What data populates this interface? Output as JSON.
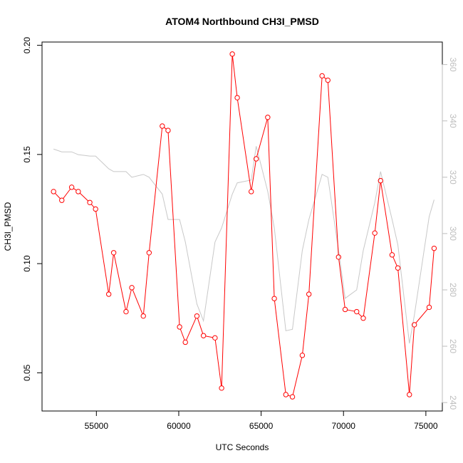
{
  "chart_data": {
    "type": "line",
    "title": "ATOM4 Northbound CH3I_PMSD",
    "xlabel": "UTC Seconds",
    "ylabel": "CH3I_PMSD",
    "xlim": [
      51700,
      76000
    ],
    "ylim": [
      0.0325,
      0.2015
    ],
    "y2lim": [
      237,
      368
    ],
    "x_ticks": [
      55000,
      60000,
      65000,
      70000,
      75000
    ],
    "y_ticks": [
      0.05,
      0.1,
      0.15,
      0.2
    ],
    "y2_ticks": [
      240,
      260,
      280,
      300,
      320,
      340,
      360
    ],
    "x_tick_labels": [
      "55000",
      "60000",
      "65000",
      "70000",
      "75000"
    ],
    "y_tick_labels": [
      "0.05",
      "0.10",
      "0.15",
      "0.20"
    ],
    "y2_tick_labels": [
      "240",
      "260",
      "280",
      "300",
      "320",
      "340",
      "360"
    ],
    "grid": false,
    "series": [
      {
        "color": "#ff0000",
        "axis": "left",
        "markers": "open-circle",
        "x": [
          52400,
          52900,
          53500,
          53900,
          54600,
          54950,
          55750,
          56050,
          56800,
          57150,
          57850,
          58200,
          59000,
          59350,
          60050,
          60400,
          61100,
          61500,
          62200,
          62600,
          63250,
          63550,
          64400,
          64700,
          65400,
          65800,
          66500,
          66900,
          67500,
          67900,
          68700,
          69050,
          69700,
          70100,
          70800,
          71200,
          71900,
          72250,
          72950,
          73300,
          74000,
          74300,
          75200,
          75500
        ],
        "y": [
          0.133,
          0.129,
          0.135,
          0.133,
          0.128,
          0.125,
          0.086,
          0.105,
          0.078,
          0.089,
          0.076,
          0.105,
          0.163,
          0.161,
          0.071,
          0.064,
          0.076,
          0.067,
          0.066,
          0.043,
          0.196,
          0.176,
          0.133,
          0.148,
          0.167,
          0.084,
          0.04,
          0.039,
          0.058,
          0.086,
          0.186,
          0.184,
          0.103,
          0.079,
          0.078,
          0.075,
          0.114,
          0.138,
          0.104,
          0.098,
          0.04,
          0.072,
          0.08,
          0.107
        ]
      },
      {
        "color": "#c8c8c8",
        "axis": "right",
        "markers": "none",
        "x": [
          52400,
          52900,
          53500,
          53900,
          54600,
          54950,
          55750,
          56050,
          56800,
          57150,
          57850,
          58200,
          59000,
          59350,
          60050,
          60400,
          61100,
          61500,
          62200,
          62600,
          63250,
          63550,
          64400,
          64700,
          65400,
          65800,
          66500,
          66900,
          67500,
          67900,
          68700,
          69050,
          69700,
          70100,
          70800,
          71200,
          71900,
          72250,
          72950,
          73300,
          74000,
          74300,
          75200,
          75500
        ],
        "y": [
          330,
          329,
          329,
          328,
          327.5,
          327.5,
          323,
          322,
          322,
          320,
          321,
          320,
          314,
          305,
          305,
          297,
          275,
          269,
          297,
          302,
          314,
          318,
          319,
          331,
          315,
          302,
          265.5,
          266,
          294,
          305,
          321,
          320,
          294,
          277,
          280,
          294,
          311,
          322,
          305,
          296,
          261,
          271,
          306,
          312
        ]
      }
    ]
  }
}
